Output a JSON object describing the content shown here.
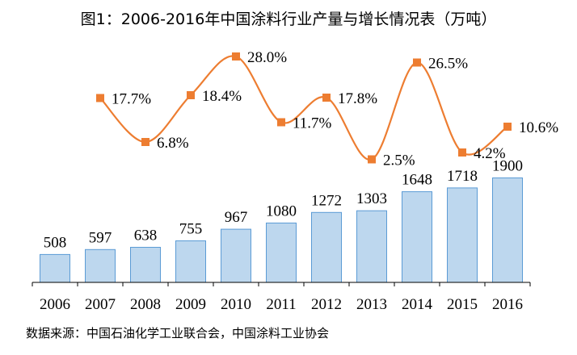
{
  "title": "图1：2006-2016年中国涂料行业产量与增长情况表（万吨）",
  "source": "数据来源：中国石油化学工业联合会，中国涂料工业协会",
  "colors": {
    "bar_fill": "#bdd7ee",
    "bar_stroke": "#5b9bd5",
    "line": "#ed7d31",
    "marker": "#ed7d31",
    "axis": "#000000"
  },
  "chart_data": {
    "type": "bar",
    "categories": [
      "2006",
      "2007",
      "2008",
      "2009",
      "2010",
      "2011",
      "2012",
      "2013",
      "2014",
      "2015",
      "2016"
    ],
    "series": [
      {
        "type": "bar",
        "values": [
          508,
          597,
          638,
          755,
          967,
          1080,
          1272,
          1303,
          1648,
          1718,
          1900
        ],
        "labels": [
          "508",
          "597",
          "638",
          "755",
          "967",
          "1080",
          "1272",
          "1303",
          "1648",
          "1718",
          "1900"
        ]
      },
      {
        "type": "line",
        "values": [
          null,
          17.7,
          6.8,
          18.4,
          28.0,
          11.7,
          17.8,
          2.5,
          26.5,
          4.2,
          10.6
        ],
        "labels": [
          "",
          "17.7%",
          "6.8%",
          "18.4%",
          "28.0%",
          "11.7%",
          "17.8%",
          "2.5%",
          "26.5%",
          "4.2%",
          "10.6%"
        ],
        "marker": "square",
        "smooth": true
      }
    ],
    "ylim": [
      0,
      4400
    ],
    "y2lim": [
      -28,
      32
    ],
    "grid": false,
    "legend": "none"
  }
}
